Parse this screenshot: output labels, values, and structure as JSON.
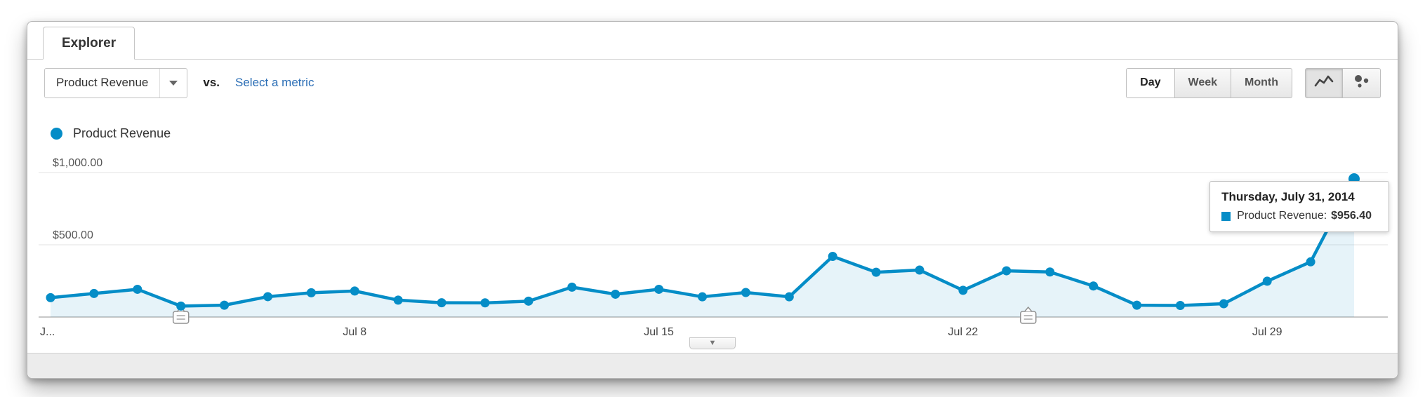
{
  "tab": {
    "label": "Explorer"
  },
  "toolbar": {
    "metric_selector": {
      "value": "Product Revenue",
      "caret_icon": "chevron-down-icon"
    },
    "vs_label": "vs.",
    "select_metric_link": "Select a metric",
    "granularity": {
      "options": [
        "Day",
        "Week",
        "Month"
      ],
      "selected": "Day"
    },
    "chart_type": {
      "options": [
        "line-chart-icon",
        "motion-chart-icon"
      ],
      "selected": "line-chart"
    }
  },
  "legend": {
    "series_label": "Product Revenue",
    "color": "#058dc7"
  },
  "tooltip": {
    "title": "Thursday, July 31, 2014",
    "series": "Product Revenue:",
    "value": "$956.40",
    "swatch_color": "#058dc7"
  },
  "colors": {
    "series_line": "#058dc7",
    "link": "#2a6db5",
    "axis": "#b5b5b5",
    "gridline": "#e3e3e3"
  },
  "chart_data": {
    "type": "line",
    "title": "Product Revenue by day",
    "series_name": "Product Revenue",
    "x": [
      "Jul 1",
      "Jul 2",
      "Jul 3",
      "Jul 4",
      "Jul 5",
      "Jul 6",
      "Jul 7",
      "Jul 8",
      "Jul 9",
      "Jul 10",
      "Jul 11",
      "Jul 12",
      "Jul 13",
      "Jul 14",
      "Jul 15",
      "Jul 16",
      "Jul 17",
      "Jul 18",
      "Jul 19",
      "Jul 20",
      "Jul 21",
      "Jul 22",
      "Jul 23",
      "Jul 24",
      "Jul 25",
      "Jul 26",
      "Jul 27",
      "Jul 28",
      "Jul 29",
      "Jul 30",
      "Jul 31"
    ],
    "values": [
      134,
      163,
      192,
      76,
      82,
      141,
      168,
      180,
      117,
      99,
      98,
      110,
      207,
      158,
      192,
      140,
      170,
      140,
      420,
      310,
      325,
      185,
      320,
      312,
      215,
      82,
      80,
      92,
      248,
      382,
      956.4
    ],
    "ylim": [
      0,
      1000
    ],
    "y_ticks": [
      {
        "value": 500,
        "label": "$500.00"
      },
      {
        "value": 1000,
        "label": "$1,000.00"
      }
    ],
    "x_ticks": [
      {
        "index": 0,
        "label": "J...",
        "anchor": "start"
      },
      {
        "index": 7,
        "label": "Jul 8"
      },
      {
        "index": 14,
        "label": "Jul 15"
      },
      {
        "index": 21,
        "label": "Jul 22"
      },
      {
        "index": 28,
        "label": "Jul 29"
      }
    ],
    "annotations": [
      {
        "index": 3,
        "icon": "annotation-bubble-icon"
      },
      {
        "index": 22.5,
        "icon": "annotation-bubble-icon"
      }
    ],
    "grid": true,
    "legend_position": "top-left",
    "line_color": "#058dc7",
    "fill_color": "rgba(5,141,199,0.10)",
    "highlight_last_point": true
  },
  "expander": {
    "arrow": "▼"
  }
}
